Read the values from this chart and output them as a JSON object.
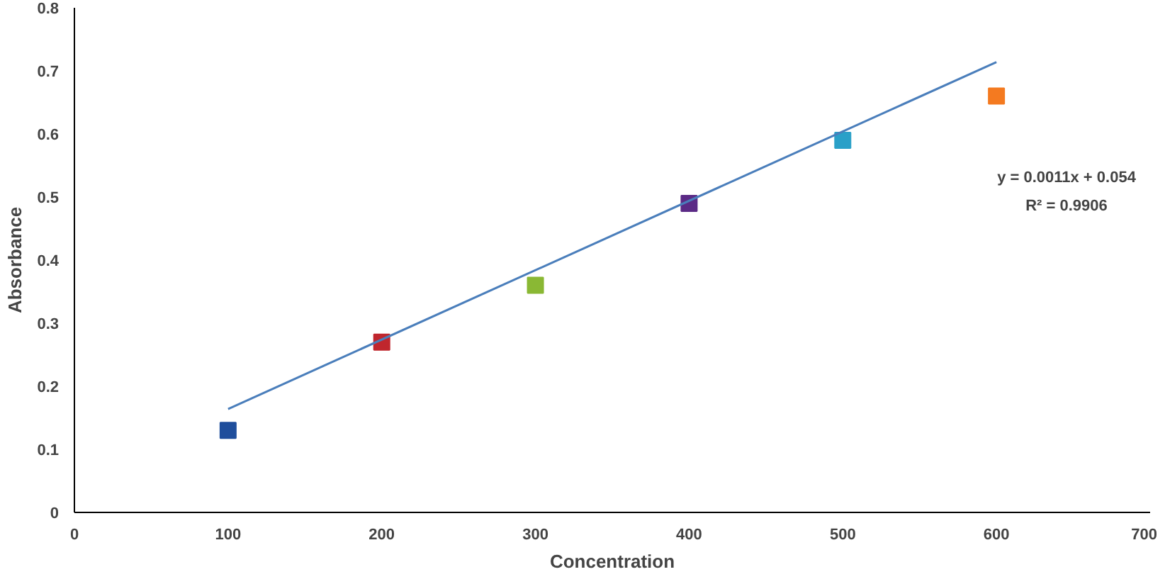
{
  "chart_data": {
    "type": "scatter",
    "xlabel": "Concentration",
    "ylabel": "Absorbance",
    "xlim": [
      0,
      700
    ],
    "xticks": [
      0,
      100,
      200,
      300,
      400,
      500,
      600,
      700
    ],
    "ylim": [
      0,
      0.8
    ],
    "yticks": [
      0,
      0.1,
      0.2,
      0.3,
      0.4,
      0.5,
      0.6,
      0.7,
      0.8
    ],
    "grid": false,
    "series": [
      {
        "marker": "square",
        "x": [
          100,
          200,
          300,
          400,
          500,
          600
        ],
        "values": [
          0.13,
          0.27,
          0.36,
          0.49,
          0.59,
          0.66
        ],
        "colors": [
          "#1f4e9c",
          "#c0262d",
          "#8ab834",
          "#5b2a86",
          "#2aa0c8",
          "#f47a20"
        ]
      },
      {
        "type": "line",
        "x": [
          100,
          600
        ],
        "values": [
          0.164,
          0.714
        ],
        "color": "#4a7ebb"
      }
    ],
    "annotations": [
      "y = 0.0011x + 0.054",
      "R² = 0.9906"
    ]
  }
}
